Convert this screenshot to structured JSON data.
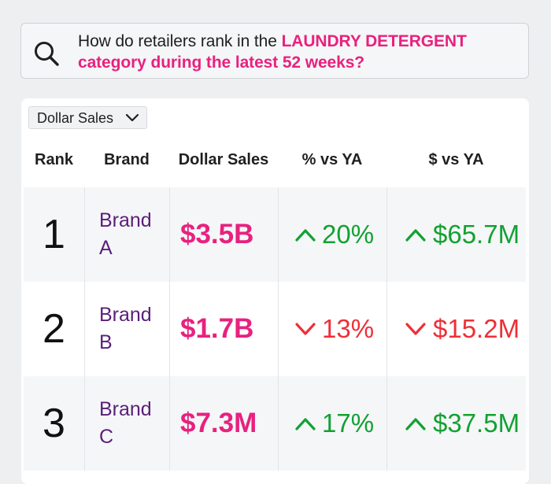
{
  "query": {
    "prefix": "How do retailers rank in the ",
    "highlight_1": "LAUNDRY DETERGENT",
    "highlight_2": "category during the latest 52 weeks?"
  },
  "metric_select": {
    "selected": "Dollar Sales"
  },
  "table": {
    "columns": [
      "Rank",
      "Brand",
      "Dollar Sales",
      "% vs YA",
      "$ vs YA"
    ],
    "rows": [
      {
        "rank": "1",
        "brand_line1": "Brand",
        "brand_line2": "A",
        "dollar_sales": "$3.5B",
        "pct_vs_ya": "20%",
        "pct_direction": "up",
        "usd_vs_ya": "$65.7M",
        "usd_direction": "up"
      },
      {
        "rank": "2",
        "brand_line1": "Brand",
        "brand_line2": "B",
        "dollar_sales": "$1.7B",
        "pct_vs_ya": "13%",
        "pct_direction": "down",
        "usd_vs_ya": "$15.2M",
        "usd_direction": "down"
      },
      {
        "rank": "3",
        "brand_line1": "Brand",
        "brand_line2": "C",
        "dollar_sales": "$7.3M",
        "pct_vs_ya": "17%",
        "pct_direction": "up",
        "usd_vs_ya": "$37.5M",
        "usd_direction": "up"
      }
    ]
  },
  "colors": {
    "highlight": "#e8217f",
    "brand": "#5a1f7a",
    "positive": "#12a132",
    "negative": "#ee2f37"
  },
  "icons": {
    "search": "search-icon",
    "dropdown": "chevron-down-icon",
    "up": "arrow-up-icon",
    "down": "arrow-down-icon"
  }
}
